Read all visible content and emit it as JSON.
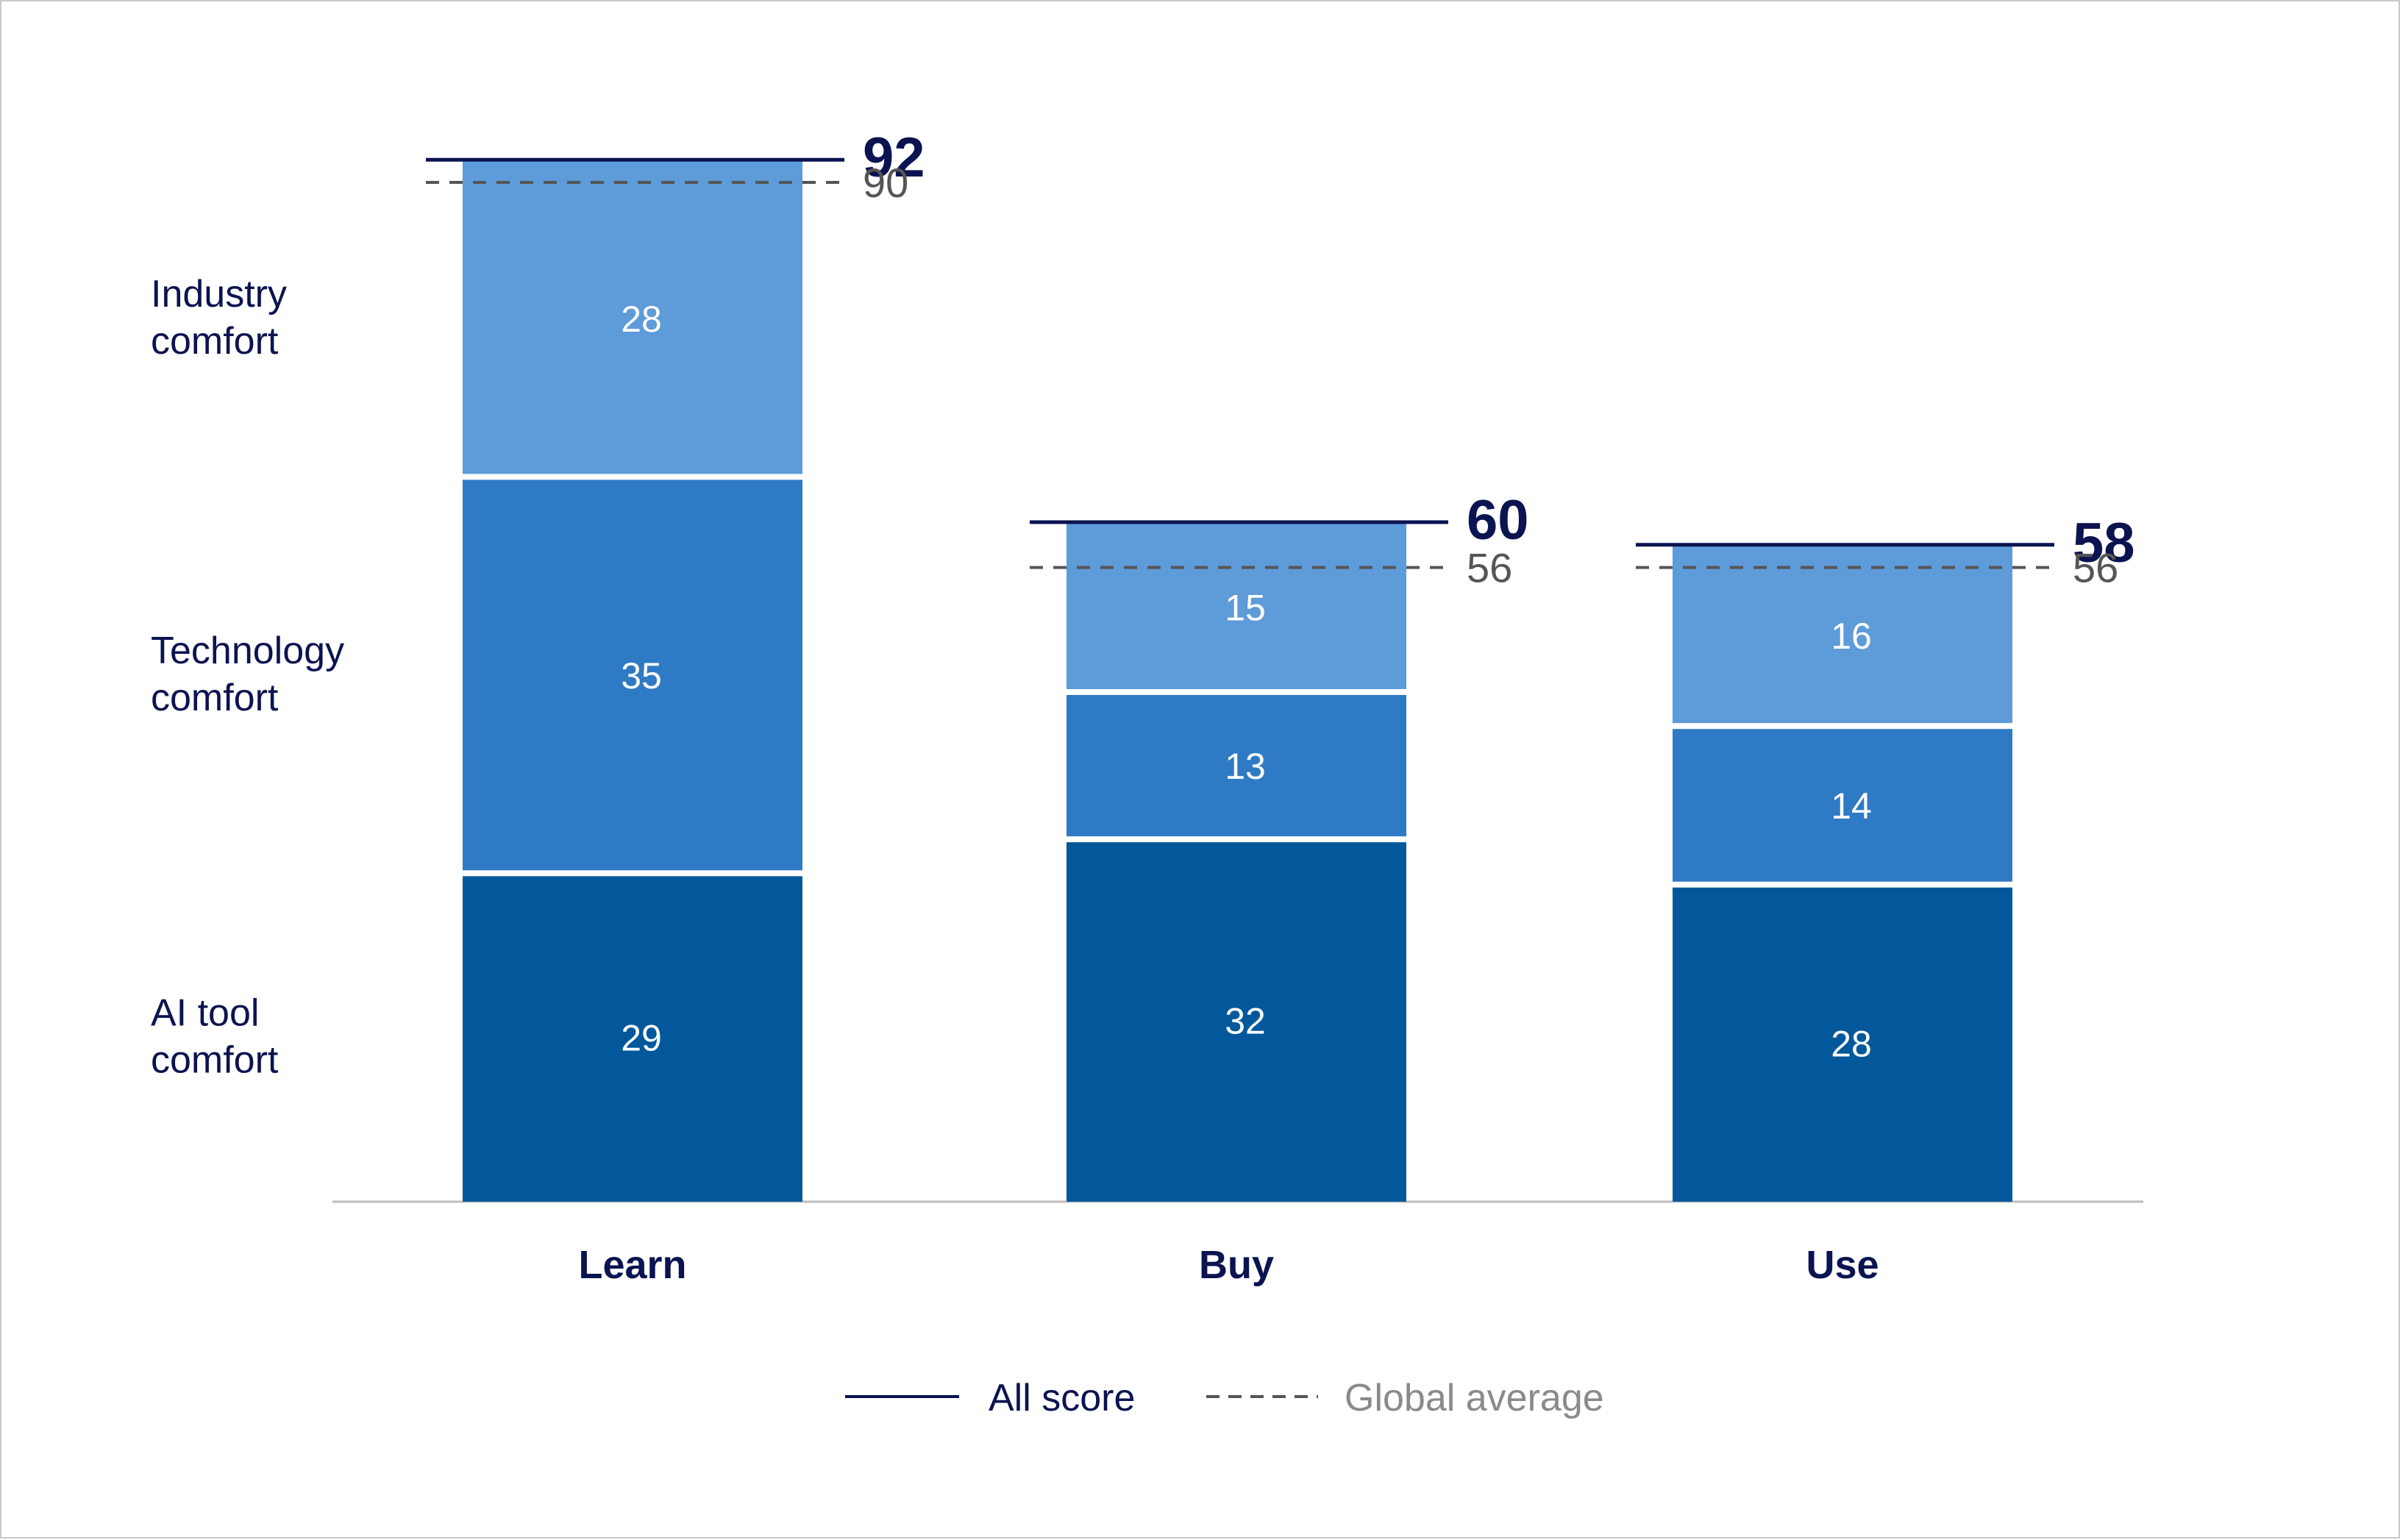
{
  "chart_data": {
    "type": "bar",
    "stacked": true,
    "categories": [
      "Learn",
      "Buy",
      "Use"
    ],
    "series": [
      {
        "name": "AI tool\ncomfort",
        "values": [
          29,
          32,
          28
        ],
        "color": "#02589b"
      },
      {
        "name": "Technology\ncomfort",
        "values": [
          35,
          13,
          14
        ],
        "color": "#2f7ac4"
      },
      {
        "name": "Industry\ncomfort",
        "values": [
          28,
          15,
          16
        ],
        "color": "#5e9bd9"
      }
    ],
    "totals": [
      92,
      60,
      58
    ],
    "global_average": [
      90,
      56,
      56
    ],
    "ylim": [
      0,
      92
    ],
    "legend": {
      "placement": "bottom-center",
      "items": [
        {
          "label": "All score",
          "style": "solid"
        },
        {
          "label": "Global average",
          "style": "dashed"
        }
      ]
    },
    "colors": {
      "total_line": "#0b1350",
      "average_line": "#555555",
      "average_text": "#555555",
      "category_text": "#0b1350",
      "row_text": "#0b1350",
      "baseline": "#bdbdbd",
      "legend_avg_text": "#8a8a8a"
    }
  }
}
